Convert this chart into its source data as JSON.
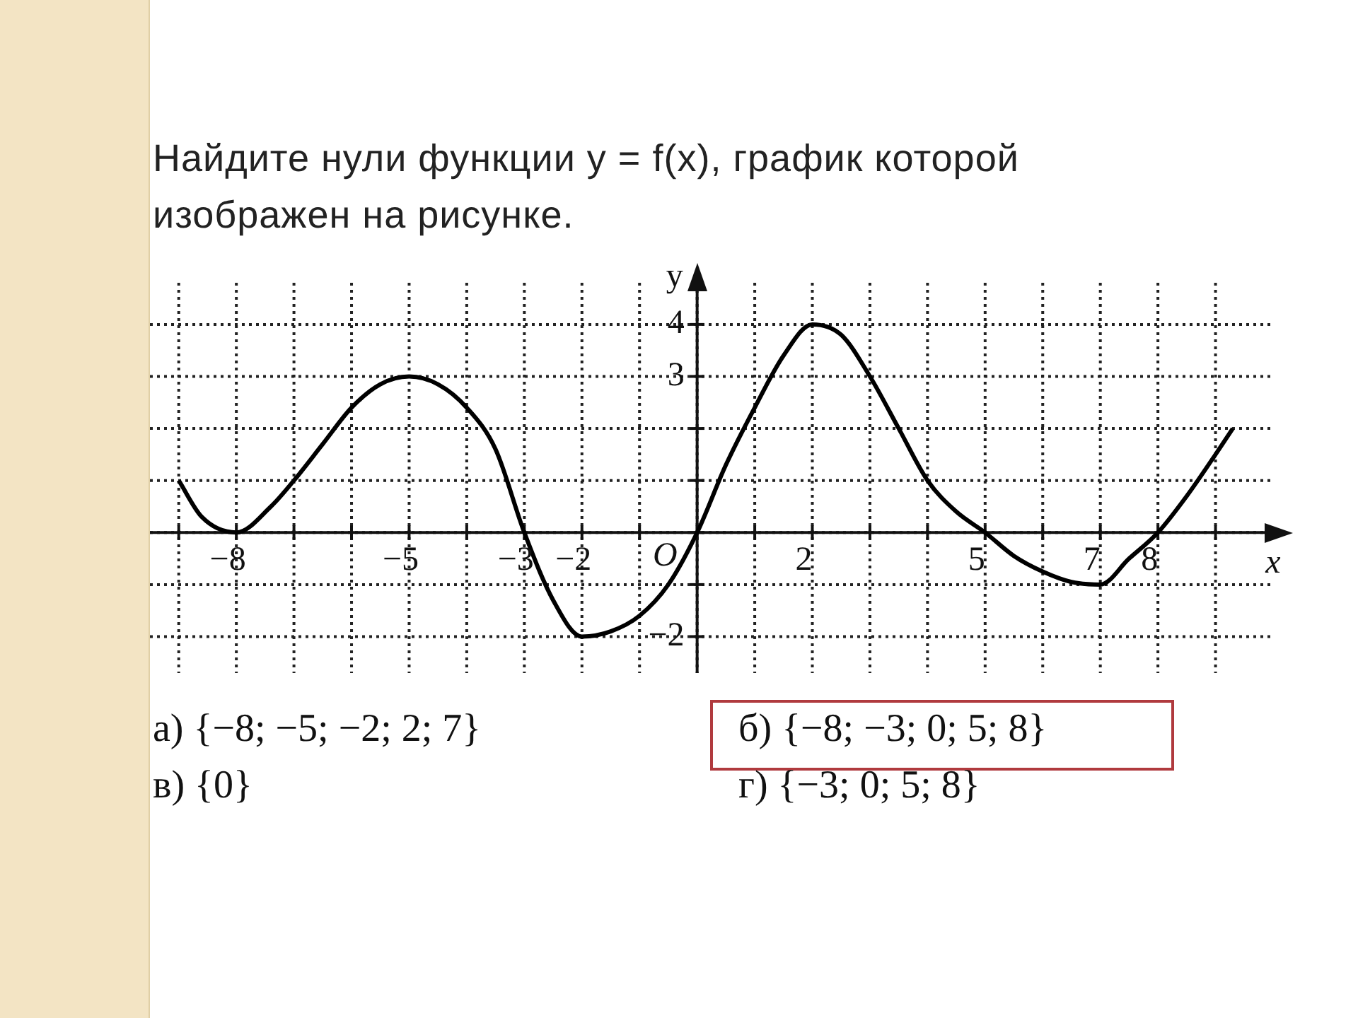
{
  "chart_data": {
    "type": "line",
    "title": "Найдите нули функции y = f(x), график которой изображен на рисунке.",
    "xlabel": "x",
    "ylabel": "y",
    "series": [
      {
        "color": "#000000",
        "x": [
          -9,
          -8.6,
          -8,
          -7.4,
          -7,
          -6.5,
          -6,
          -5.5,
          -5,
          -4.5,
          -4,
          -3.5,
          -3,
          -2.5,
          -2,
          -1.5,
          -1,
          -0.5,
          0,
          0.5,
          1,
          1.5,
          2,
          2.5,
          3,
          3.5,
          4,
          4.5,
          5,
          5.5,
          6,
          6.5,
          7,
          7.5,
          8,
          8.5,
          9,
          9.3
        ],
        "values": [
          1,
          0.3,
          0,
          0.5,
          1,
          1.7,
          2.4,
          2.85,
          3,
          2.85,
          2.4,
          1.6,
          0,
          -1.3,
          -2,
          -1.9,
          -1.6,
          -1,
          0,
          1.3,
          2.4,
          3.4,
          4,
          3.8,
          3,
          2,
          1,
          0.4,
          0,
          -0.45,
          -0.75,
          -0.95,
          -1,
          -0.5,
          0,
          0.7,
          1.5,
          2
        ]
      }
    ],
    "xlim": [
      -9.5,
      10
    ],
    "ylim": [
      -2.7,
      4.8
    ],
    "xticks": [
      {
        "value": -9,
        "label": null
      },
      -8,
      {
        "value": -7,
        "label": null
      },
      {
        "value": -6,
        "label": null
      },
      -5,
      {
        "value": -4,
        "label": null
      },
      -3,
      -2,
      {
        "value": -1,
        "label": null
      },
      {
        "value": 0,
        "label": null
      },
      {
        "value": 1,
        "label": null
      },
      2,
      {
        "value": 3,
        "label": null
      },
      {
        "value": 4,
        "label": null
      },
      5,
      {
        "value": 6,
        "label": null
      },
      7,
      8,
      {
        "value": 9,
        "label": null
      }
    ],
    "yticks": [
      -2,
      {
        "value": -1,
        "label": null
      },
      {
        "value": 0,
        "label": null
      },
      {
        "value": 1,
        "label": null
      },
      {
        "value": 2,
        "label": null
      },
      3,
      4
    ],
    "grid": true,
    "legend": false,
    "marker": "none",
    "line_style": "solid",
    "annotations": [
      {
        "text": "O",
        "x": 0,
        "y": 0
      },
      "а) {−8; −5; −2; 2; 7}",
      "б) {−8; −3; 0; 5; 8}",
      "в) {0}",
      "г) {−3; 0; 5; 8}"
    ]
  }
}
